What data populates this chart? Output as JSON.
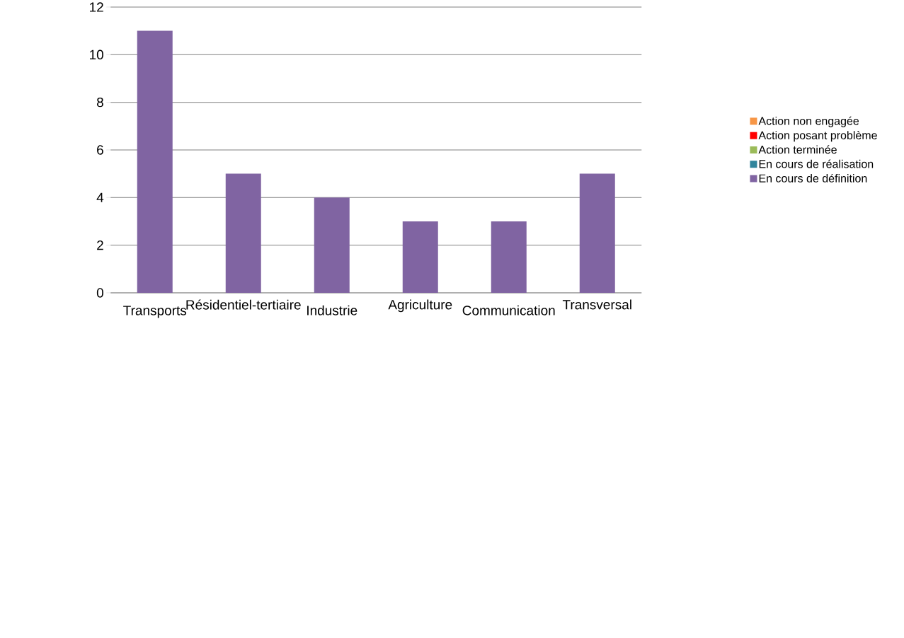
{
  "chart_data": {
    "type": "bar",
    "stacked": true,
    "categories": [
      "Transports",
      "Résidentiel-tertiaire",
      "Industrie",
      "Agriculture",
      "Communication",
      "Transversal"
    ],
    "series": [
      {
        "name": "Action non engagée",
        "color": "#f79646",
        "values": [
          0,
          0,
          0,
          0,
          0,
          0
        ]
      },
      {
        "name": "Action posant problème",
        "color": "#ff0000",
        "values": [
          0,
          0,
          0,
          0,
          0,
          0
        ]
      },
      {
        "name": "Action terminée",
        "color": "#9bbb59",
        "values": [
          0,
          0,
          0,
          0,
          0,
          0
        ]
      },
      {
        "name": "En cours de réalisation",
        "color": "#31859c",
        "values": [
          0,
          0,
          0,
          0,
          0,
          0
        ]
      },
      {
        "name": "En cours de définition",
        "color": "#8064a2",
        "values": [
          11,
          5,
          4,
          3,
          3,
          5
        ]
      }
    ],
    "ylim": [
      0,
      12
    ],
    "yticks": [
      0,
      2,
      4,
      6,
      8,
      10,
      12
    ],
    "grid": "y",
    "legend": "right"
  }
}
